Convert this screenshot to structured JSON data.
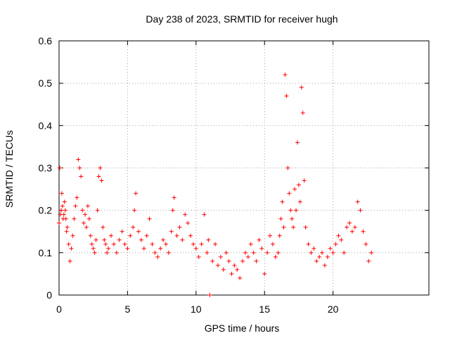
{
  "chart_data": {
    "type": "scatter",
    "title": "Day 238 of 2023, SRMTID for receiver hugh",
    "xlabel": "GPS time / hours",
    "ylabel": "SRMTID / TECUs",
    "xlim": [
      0,
      27
    ],
    "ylim": [
      0,
      0.6
    ],
    "xticks": [
      0,
      5,
      10,
      15,
      20
    ],
    "xtick_labels": [
      "0",
      "5",
      "10",
      "15",
      "20"
    ],
    "yticks": [
      0,
      0.1,
      0.2,
      0.3,
      0.4,
      0.5,
      0.6
    ],
    "ytick_labels": [
      "0",
      "0.1",
      "0.2",
      "0.3",
      "0.4",
      "0.5",
      "0.6"
    ],
    "grid": true,
    "marker": "plus",
    "series": [
      {
        "name": "SRMTID",
        "color": "#ff0000",
        "x": [
          0.0,
          0.05,
          0.1,
          0.15,
          0.2,
          0.25,
          0.3,
          0.35,
          0.4,
          0.45,
          0.5,
          0.55,
          0.6,
          0.7,
          0.8,
          0.9,
          1.0,
          1.1,
          1.2,
          1.3,
          1.4,
          1.5,
          1.6,
          1.7,
          1.8,
          1.9,
          2.0,
          2.1,
          2.2,
          2.3,
          2.4,
          2.5,
          2.6,
          2.7,
          2.8,
          2.9,
          3.0,
          3.1,
          3.2,
          3.3,
          3.4,
          3.5,
          3.6,
          3.8,
          4.0,
          4.2,
          4.4,
          4.6,
          4.8,
          5.0,
          5.2,
          5.4,
          5.5,
          5.6,
          5.8,
          6.0,
          6.2,
          6.4,
          6.6,
          6.8,
          7.0,
          7.2,
          7.4,
          7.6,
          7.8,
          8.0,
          8.2,
          8.3,
          8.4,
          8.6,
          8.8,
          9.0,
          9.2,
          9.4,
          9.6,
          9.8,
          10.0,
          10.2,
          10.4,
          10.6,
          10.8,
          10.9,
          11.0,
          11.2,
          11.4,
          11.6,
          11.8,
          12.0,
          12.2,
          12.4,
          12.6,
          12.8,
          13.0,
          13.2,
          13.4,
          13.6,
          13.8,
          14.0,
          14.2,
          14.4,
          14.6,
          14.8,
          15.0,
          15.2,
          15.4,
          15.6,
          15.8,
          16.0,
          16.1,
          16.2,
          16.3,
          16.4,
          16.5,
          16.6,
          16.7,
          16.8,
          16.9,
          17.0,
          17.1,
          17.2,
          17.3,
          17.4,
          17.5,
          17.6,
          17.7,
          17.8,
          17.9,
          18.0,
          18.2,
          18.4,
          18.6,
          18.8,
          19.0,
          19.2,
          19.4,
          19.6,
          19.8,
          20.0,
          20.2,
          20.4,
          20.6,
          20.8,
          21.0,
          21.2,
          21.4,
          21.6,
          21.8,
          22.0,
          22.2,
          22.4,
          22.6,
          22.8
        ],
        "y": [
          0.17,
          0.3,
          0.19,
          0.2,
          0.24,
          0.21,
          0.18,
          0.19,
          0.22,
          0.2,
          0.18,
          0.15,
          0.16,
          0.12,
          0.08,
          0.11,
          0.14,
          0.18,
          0.21,
          0.23,
          0.32,
          0.3,
          0.28,
          0.2,
          0.17,
          0.19,
          0.16,
          0.21,
          0.18,
          0.14,
          0.12,
          0.11,
          0.1,
          0.13,
          0.2,
          0.28,
          0.3,
          0.27,
          0.16,
          0.13,
          0.12,
          0.1,
          0.11,
          0.14,
          0.12,
          0.1,
          0.13,
          0.15,
          0.12,
          0.11,
          0.14,
          0.16,
          0.2,
          0.24,
          0.15,
          0.13,
          0.11,
          0.14,
          0.18,
          0.12,
          0.1,
          0.09,
          0.11,
          0.13,
          0.12,
          0.1,
          0.15,
          0.2,
          0.23,
          0.14,
          0.16,
          0.13,
          0.19,
          0.17,
          0.14,
          0.12,
          0.11,
          0.09,
          0.12,
          0.19,
          0.1,
          0.13,
          0.0,
          0.08,
          0.12,
          0.07,
          0.09,
          0.06,
          0.1,
          0.08,
          0.05,
          0.07,
          0.06,
          0.04,
          0.08,
          0.1,
          0.09,
          0.12,
          0.1,
          0.08,
          0.13,
          0.11,
          0.05,
          0.1,
          0.14,
          0.12,
          0.09,
          0.1,
          0.14,
          0.18,
          0.22,
          0.16,
          0.52,
          0.47,
          0.3,
          0.24,
          0.2,
          0.18,
          0.16,
          0.25,
          0.2,
          0.36,
          0.26,
          0.22,
          0.49,
          0.43,
          0.27,
          0.16,
          0.12,
          0.1,
          0.11,
          0.08,
          0.09,
          0.1,
          0.07,
          0.09,
          0.11,
          0.1,
          0.12,
          0.14,
          0.13,
          0.1,
          0.16,
          0.17,
          0.15,
          0.16,
          0.22,
          0.2,
          0.15,
          0.12,
          0.08,
          0.1
        ]
      }
    ]
  }
}
